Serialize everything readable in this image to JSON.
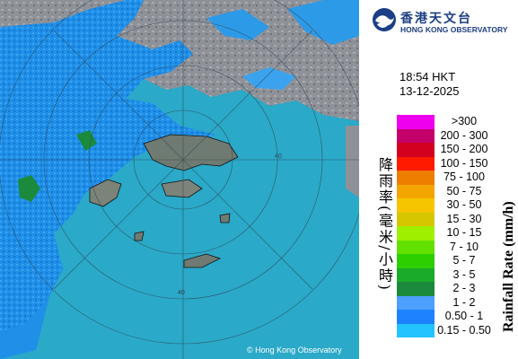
{
  "header": {
    "org_zh": "香港天文台",
    "org_en": "HONG KONG OBSERVATORY"
  },
  "timestamp": {
    "time": "18:54 HKT",
    "date": "13-12-2025"
  },
  "map": {
    "copyright": "© Hong Kong Observatory",
    "range_ring_labels": [
      "40",
      "40"
    ]
  },
  "legend": {
    "title_zh": "降雨率(毫米/小時)",
    "title_en": "Rainfall Rate (mm/h)",
    "items": [
      {
        "label": ">300",
        "color": "#ee00ee"
      },
      {
        "label": "200 - 300",
        "color": "#c4006b"
      },
      {
        "label": "150 - 200",
        "color": "#d2001e"
      },
      {
        "label": "100 - 150",
        "color": "#ff1a00"
      },
      {
        "label": "75 - 100",
        "color": "#ee7e00"
      },
      {
        "label": "50 - 75",
        "color": "#f3a600"
      },
      {
        "label": "30 - 50",
        "color": "#f7c400"
      },
      {
        "label": "15 - 30",
        "color": "#d6c600"
      },
      {
        "label": "10 - 15",
        "color": "#9ef000"
      },
      {
        "label": "7 - 10",
        "color": "#62e000"
      },
      {
        "label": "5 - 7",
        "color": "#2ecf00"
      },
      {
        "label": "3 - 5",
        "color": "#1aab2a"
      },
      {
        "label": "2 - 3",
        "color": "#1b8a3c"
      },
      {
        "label": "1 - 2",
        "color": "#4da0ff"
      },
      {
        "label": "0.50 - 1",
        "color": "#1e82ff"
      },
      {
        "label": "0.15 - 0.50",
        "color": "#22c4ff"
      }
    ]
  }
}
